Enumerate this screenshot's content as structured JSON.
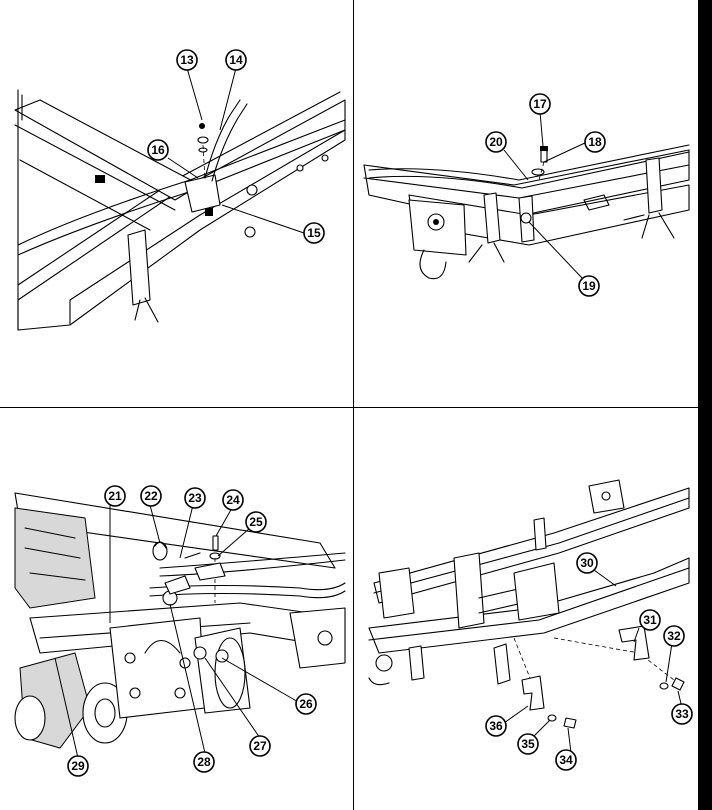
{
  "panels": [
    {
      "name": "top-left",
      "callouts": [
        {
          "label": "13"
        },
        {
          "label": "14"
        },
        {
          "label": "15"
        },
        {
          "label": "16"
        }
      ]
    },
    {
      "name": "top-right",
      "callouts": [
        {
          "label": "17"
        },
        {
          "label": "18"
        },
        {
          "label": "19"
        },
        {
          "label": "20"
        }
      ]
    },
    {
      "name": "bottom-left",
      "callouts": [
        {
          "label": "21"
        },
        {
          "label": "22"
        },
        {
          "label": "23"
        },
        {
          "label": "24"
        },
        {
          "label": "25"
        },
        {
          "label": "26"
        },
        {
          "label": "27"
        },
        {
          "label": "28"
        },
        {
          "label": "29"
        }
      ]
    },
    {
      "name": "bottom-right",
      "callouts": [
        {
          "label": "30"
        },
        {
          "label": "31"
        },
        {
          "label": "32"
        },
        {
          "label": "33"
        },
        {
          "label": "34"
        },
        {
          "label": "35"
        },
        {
          "label": "36"
        }
      ]
    }
  ]
}
